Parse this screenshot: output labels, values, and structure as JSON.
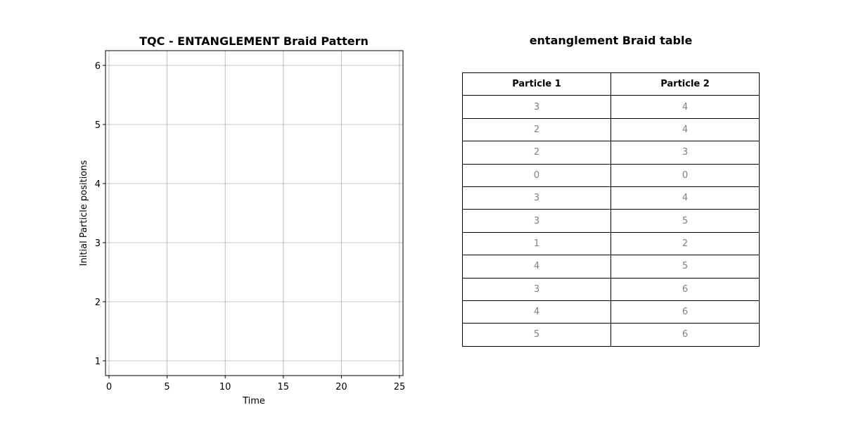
{
  "chart_data": [
    {
      "type": "line",
      "title": "TQC - ENTANGLEMENT Braid Pattern",
      "xlabel": "Time",
      "ylabel": "Initial Particle positions",
      "xlim": [
        -0.3,
        25.3
      ],
      "ylim": [
        0.75,
        6.25
      ],
      "xticks": [
        0,
        5,
        10,
        15,
        20,
        25
      ],
      "yticks": [
        1,
        2,
        3,
        4,
        5,
        6
      ],
      "grid": true,
      "series": []
    },
    {
      "type": "table",
      "title": "entanglement Braid table",
      "columns": [
        "Particle 1",
        "Particle 2"
      ],
      "rows": [
        [
          "3",
          "4"
        ],
        [
          "2",
          "4"
        ],
        [
          "2",
          "3"
        ],
        [
          "0",
          "0"
        ],
        [
          "3",
          "4"
        ],
        [
          "3",
          "5"
        ],
        [
          "1",
          "2"
        ],
        [
          "4",
          "5"
        ],
        [
          "3",
          "6"
        ],
        [
          "4",
          "6"
        ],
        [
          "5",
          "6"
        ]
      ]
    }
  ],
  "colors": {
    "grid": "#b0b0b0",
    "cell_text": "#808080",
    "header_text": "#000000"
  }
}
